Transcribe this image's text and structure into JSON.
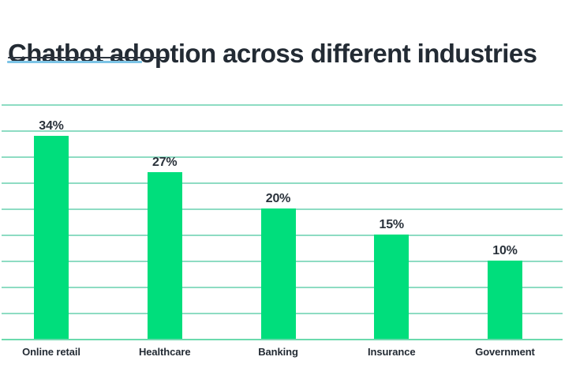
{
  "title": "Chatbot adoption across different industries",
  "colors": {
    "title_text": "#232B34",
    "title_underline_dark": "#2B333D",
    "title_underline_blue": "#7CC4E6",
    "gridline": "#8EDCC3",
    "baseline": "#6CDAAE",
    "bar": "#00DE7C",
    "value_label_text": "#2A323B",
    "category_label_text": "#232B34",
    "background": "#FFFFFF"
  },
  "chart_data": {
    "type": "bar",
    "title": "Chatbot adoption across different industries",
    "categories": [
      "Online retail",
      "Healthcare",
      "Banking",
      "Insurance",
      "Government"
    ],
    "values": [
      34,
      27,
      20,
      15,
      10
    ],
    "value_labels": [
      "34%",
      "27%",
      "20%",
      "15%",
      "10%"
    ],
    "xlabel": "",
    "ylabel": "",
    "unit": "percent",
    "ylim": [
      0,
      45
    ],
    "grid": "horizontal",
    "gridline_count": 10,
    "legend": "none",
    "bar_color": "#00DE7C"
  }
}
